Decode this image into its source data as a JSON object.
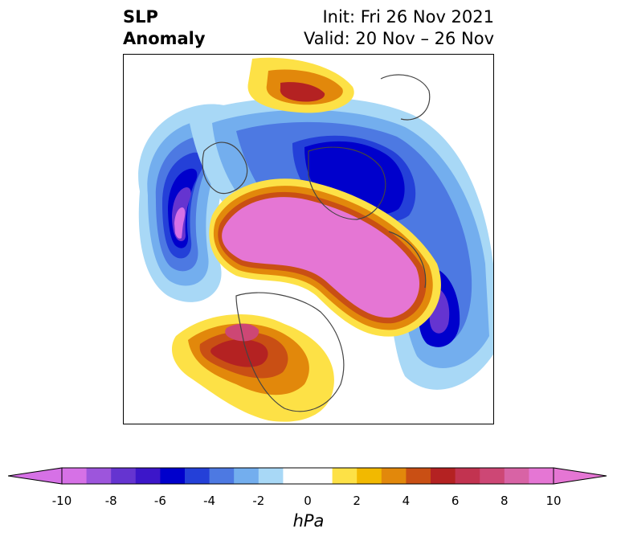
{
  "header": {
    "variable": "SLP",
    "variable_line2": "Anomaly",
    "init": "Init: Fri 26 Nov 2021",
    "valid": "Valid: 20 Nov – 26 Nov"
  },
  "colorbar": {
    "unit": "hPa",
    "min": -10,
    "max": 10,
    "step": 1,
    "ticks": [
      "-10",
      "-8",
      "-6",
      "-4",
      "-2",
      "0",
      "2",
      "4",
      "6",
      "8",
      "10"
    ],
    "colors": [
      "#d671e6",
      "#9d55dc",
      "#6534d0",
      "#3c16c9",
      "#0000cc",
      "#2440d8",
      "#4d79e2",
      "#73aeee",
      "#a8d8f6",
      "#ffffff",
      "#ffffff",
      "#fde146",
      "#f2b900",
      "#e2880b",
      "#c94f14",
      "#b42222",
      "#c23350",
      "#cd4775",
      "#d863a5",
      "#e576d4"
    ],
    "extend_low_color": "#d671e6",
    "extend_high_color": "#e576d4"
  },
  "map": {
    "projection": "north-polar-stereographic",
    "region": "Northern Hemisphere",
    "coastline_color": "#444444"
  }
}
